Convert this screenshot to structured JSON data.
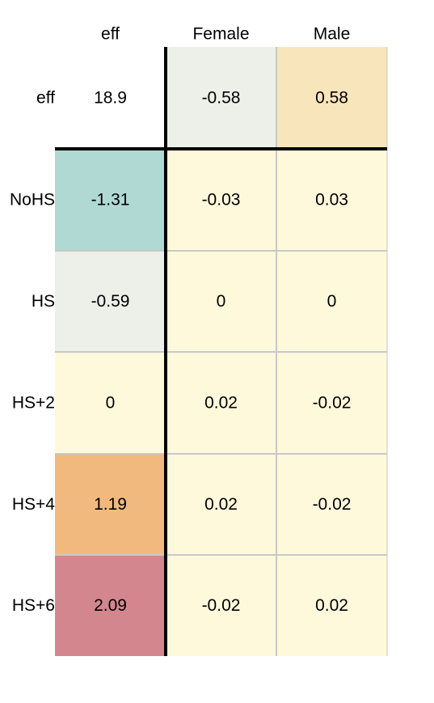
{
  "chart_data": {
    "type": "heatmap",
    "title": "",
    "corner_row_label": "eff",
    "corner_col_label": "eff",
    "columns": [
      "Female",
      "Male"
    ],
    "rows": [
      "NoHS",
      "HS",
      "HS+2",
      "HS+4",
      "HS+6"
    ],
    "grand_effect": "18.9",
    "column_effects": [
      "-0.58",
      "0.58"
    ],
    "row_effects": [
      "-1.31",
      "-0.59",
      "0",
      "1.19",
      "2.09"
    ],
    "interactions": [
      [
        "-0.03",
        "0.03"
      ],
      [
        "0",
        "0"
      ],
      [
        "0.02",
        "-0.02"
      ],
      [
        "0.02",
        "-0.02"
      ],
      [
        "-0.02",
        "0.02"
      ]
    ],
    "colors": {
      "column_effects": [
        "#ecf0e9",
        "#f9e5bb"
      ],
      "row_effects": [
        "#b0d9d3",
        "#ecf0e9",
        "#fff9dc",
        "#f1b97e",
        "#d4868f"
      ],
      "interaction": "#fff9dc",
      "grand": "#ffffff",
      "grid": "#c8c8c8",
      "divider": "#000000"
    }
  }
}
